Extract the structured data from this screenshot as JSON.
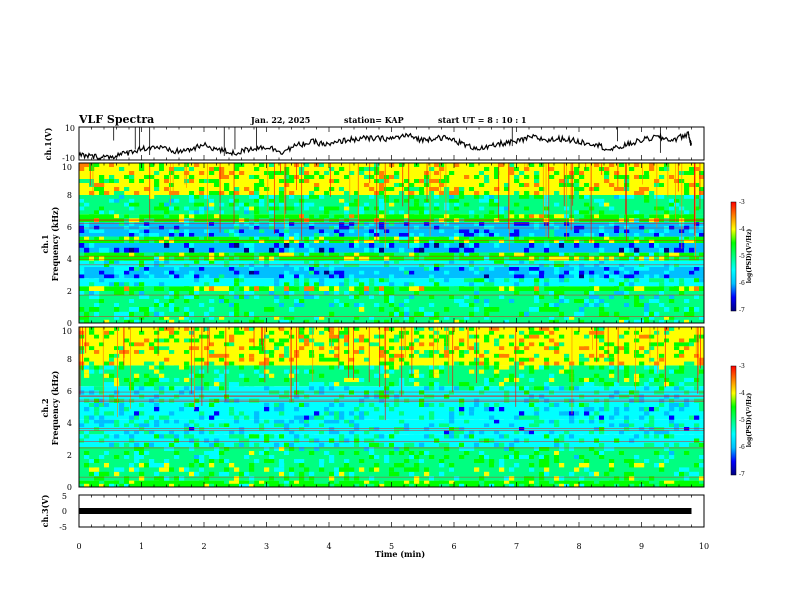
{
  "header": {
    "title": "VLF Spectra",
    "date": "Jan. 22, 2025",
    "station": "station= KAP",
    "start_ut": "start  UT =  8 : 10 : 1"
  },
  "colors": {
    "spectrogram_palette": [
      "#000080",
      "#0000ff",
      "#00bfff",
      "#00ffff",
      "#00ff80",
      "#00ff00",
      "#ffff00",
      "#ff8000",
      "#ff0000"
    ],
    "trace": "#000000",
    "background": "#ffffff"
  },
  "chart_data": [
    {
      "type": "line",
      "name": "ch1-voltage",
      "ylabel": "ch.1(V)",
      "ylim": [
        -10,
        10
      ],
      "yticks": [
        "10",
        "-10"
      ],
      "xlim": [
        0,
        10
      ],
      "x": [
        0,
        0.25,
        0.5,
        0.75,
        1.0,
        1.25,
        1.5,
        1.75,
        2.0,
        2.25,
        2.5,
        2.75,
        3.0,
        3.25,
        3.5,
        3.75,
        4.0,
        4.25,
        4.5,
        4.75,
        5.0,
        5.25,
        5.5,
        5.75,
        6.0,
        6.25,
        6.5,
        6.75,
        7.0,
        7.25,
        7.5,
        7.75,
        8.0,
        8.25,
        8.5,
        8.75,
        9.0,
        9.25,
        9.5,
        9.75,
        9.8
      ],
      "y": [
        -7,
        -8,
        -8,
        -6,
        -3,
        -2,
        -5,
        -4,
        -1,
        -4,
        -6,
        -3,
        -2,
        -5,
        -1,
        1,
        -1,
        2,
        3,
        3,
        3,
        5,
        2,
        4,
        2,
        -2,
        -3,
        0,
        1,
        4,
        2,
        3,
        1,
        0,
        -4,
        -1,
        2,
        4,
        2,
        6,
        -2
      ]
    },
    {
      "type": "heatmap",
      "name": "ch1-spectrogram",
      "ylabel": "ch.1",
      "ylabel2": "Frequency  (kHz)",
      "ylim": [
        0,
        10
      ],
      "yticks": [
        "0",
        "2",
        "4",
        "6",
        "8",
        "10"
      ],
      "xlim": [
        0,
        10
      ],
      "colorbar": {
        "label": "log(PSD)(V²/Hz)",
        "range": [
          -7,
          -3
        ],
        "ticks": [
          "-3",
          "-4",
          "-5",
          "-6",
          "-7"
        ]
      },
      "bands_khz": [
        {
          "from": 0.0,
          "to": 0.4,
          "level": -4.8
        },
        {
          "from": 0.4,
          "to": 1.0,
          "level": -5.0
        },
        {
          "from": 1.0,
          "to": 2.0,
          "level": -5.2
        },
        {
          "from": 2.0,
          "to": 2.3,
          "level": -4.3
        },
        {
          "from": 2.3,
          "to": 2.8,
          "level": -5.3
        },
        {
          "from": 2.8,
          "to": 3.5,
          "level": -6.0
        },
        {
          "from": 3.5,
          "to": 3.9,
          "level": -5.4
        },
        {
          "from": 3.9,
          "to": 4.4,
          "level": -4.6
        },
        {
          "from": 4.4,
          "to": 5.0,
          "level": -6.2
        },
        {
          "from": 5.0,
          "to": 5.4,
          "level": -4.6
        },
        {
          "from": 5.4,
          "to": 6.3,
          "level": -5.9
        },
        {
          "from": 6.3,
          "to": 6.8,
          "level": -4.5
        },
        {
          "from": 6.8,
          "to": 8.0,
          "level": -5.0
        },
        {
          "from": 8.0,
          "to": 10.0,
          "level": -4.2
        }
      ]
    },
    {
      "type": "heatmap",
      "name": "ch2-spectrogram",
      "ylabel": "ch.2",
      "ylabel2": "Frequency  (kHz)",
      "ylim": [
        0,
        10
      ],
      "yticks": [
        "0",
        "2",
        "4",
        "6",
        "8",
        "10"
      ],
      "xlim": [
        0,
        10
      ],
      "colorbar": {
        "label": "log(PSD)(V²/Hz)",
        "range": [
          -7,
          -3
        ],
        "ticks": [
          "-3",
          "-4",
          "-5",
          "-6",
          "-7"
        ]
      },
      "bands_khz": [
        {
          "from": 0.0,
          "to": 0.4,
          "level": -4.6
        },
        {
          "from": 0.4,
          "to": 1.5,
          "level": -4.8
        },
        {
          "from": 1.5,
          "to": 2.5,
          "level": -5.0
        },
        {
          "from": 2.5,
          "to": 3.3,
          "level": -5.3
        },
        {
          "from": 3.3,
          "to": 4.2,
          "level": -5.5
        },
        {
          "from": 4.2,
          "to": 5.0,
          "level": -5.6
        },
        {
          "from": 5.0,
          "to": 6.3,
          "level": -5.3
        },
        {
          "from": 6.3,
          "to": 7.6,
          "level": -4.8
        },
        {
          "from": 7.6,
          "to": 10.0,
          "level": -4.2
        }
      ]
    },
    {
      "type": "line",
      "name": "ch3-voltage",
      "ylabel": "ch.3(V)",
      "ylim": [
        -5,
        5
      ],
      "yticks": [
        "5",
        "0",
        "-5"
      ],
      "xlim": [
        0,
        10
      ],
      "x": [
        0,
        9.8
      ],
      "y": [
        0,
        0
      ]
    }
  ],
  "xaxis": {
    "label": "Time  (min)",
    "ticks": [
      "0",
      "1",
      "2",
      "3",
      "4",
      "5",
      "6",
      "7",
      "8",
      "9",
      "10"
    ]
  }
}
